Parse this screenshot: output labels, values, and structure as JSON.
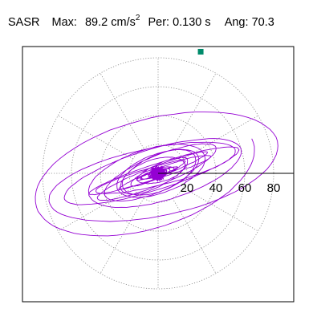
{
  "header": {
    "station": "SASR",
    "max_label": "Max:",
    "max_value": "89.2",
    "max_unit": "cm/s",
    "max_unit_exp": "2",
    "per_label": "Per:",
    "per_value": "0.130 s",
    "ang_label": "Ang:",
    "ang_value": "70.3"
  },
  "chart_data": {
    "type": "scatter",
    "subtype": "polar particle-motion (orbit) plot",
    "radial_ticks": [
      20,
      40,
      60,
      80
    ],
    "radial_tick_labels": [
      "20",
      "40",
      "60",
      "80"
    ],
    "max_radius": 89.2,
    "angle_deg": 70.3,
    "period_s": 0.13,
    "peak_point": {
      "r": 89.2,
      "theta_deg": 70.3
    },
    "grid": "dotted polar circles and radial spokes every 30 degrees",
    "trace_color": "#9400d3",
    "marker_color": "#008b6b",
    "spiral_seed": 7
  }
}
